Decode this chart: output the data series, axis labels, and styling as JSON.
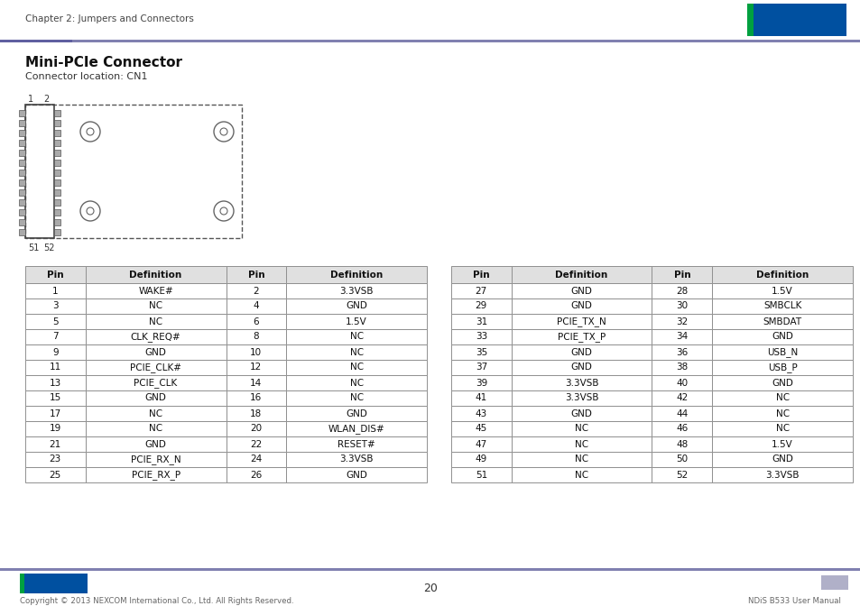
{
  "chapter_header": "Chapter 2: Jumpers and Connectors",
  "title": "Mini-PCIe Connector",
  "subtitle": "Connector location: CN1",
  "page_number": "20",
  "footer_left": "Copyright © 2013 NEXCOM International Co., Ltd. All Rights Reserved.",
  "footer_right": "NDiS B533 User Manual",
  "header_bar_color": "#8080b0",
  "footer_bar_color": "#8080b0",
  "nexcom_blue": "#0050a0",
  "nexcom_green": "#00a040",
  "nexcom_red": "#cc2222",
  "table1": {
    "headers": [
      "Pin",
      "Definition",
      "Pin",
      "Definition"
    ],
    "rows": [
      [
        "1",
        "WAKE#",
        "2",
        "3.3VSB"
      ],
      [
        "3",
        "NC",
        "4",
        "GND"
      ],
      [
        "5",
        "NC",
        "6",
        "1.5V"
      ],
      [
        "7",
        "CLK_REQ#",
        "8",
        "NC"
      ],
      [
        "9",
        "GND",
        "10",
        "NC"
      ],
      [
        "11",
        "PCIE_CLK#",
        "12",
        "NC"
      ],
      [
        "13",
        "PCIE_CLK",
        "14",
        "NC"
      ],
      [
        "15",
        "GND",
        "16",
        "NC"
      ],
      [
        "17",
        "NC",
        "18",
        "GND"
      ],
      [
        "19",
        "NC",
        "20",
        "WLAN_DIS#"
      ],
      [
        "21",
        "GND",
        "22",
        "RESET#"
      ],
      [
        "23",
        "PCIE_RX_N",
        "24",
        "3.3VSB"
      ],
      [
        "25",
        "PCIE_RX_P",
        "26",
        "GND"
      ]
    ]
  },
  "table2": {
    "headers": [
      "Pin",
      "Definition",
      "Pin",
      "Definition"
    ],
    "rows": [
      [
        "27",
        "GND",
        "28",
        "1.5V"
      ],
      [
        "29",
        "GND",
        "30",
        "SMBCLK"
      ],
      [
        "31",
        "PCIE_TX_N",
        "32",
        "SMBDAT"
      ],
      [
        "33",
        "PCIE_TX_P",
        "34",
        "GND"
      ],
      [
        "35",
        "GND",
        "36",
        "USB_N"
      ],
      [
        "37",
        "GND",
        "38",
        "USB_P"
      ],
      [
        "39",
        "3.3VSB",
        "40",
        "GND"
      ],
      [
        "41",
        "3.3VSB",
        "42",
        "NC"
      ],
      [
        "43",
        "GND",
        "44",
        "NC"
      ],
      [
        "45",
        "NC",
        "46",
        "NC"
      ],
      [
        "47",
        "NC",
        "48",
        "1.5V"
      ],
      [
        "49",
        "NC",
        "50",
        "GND"
      ],
      [
        "51",
        "NC",
        "52",
        "3.3VSB"
      ]
    ]
  },
  "bg_color": "#ffffff",
  "table_header_bg": "#e0e0e0",
  "table_border_color": "#909090",
  "text_color": "#111111",
  "gray_text": "#555555"
}
